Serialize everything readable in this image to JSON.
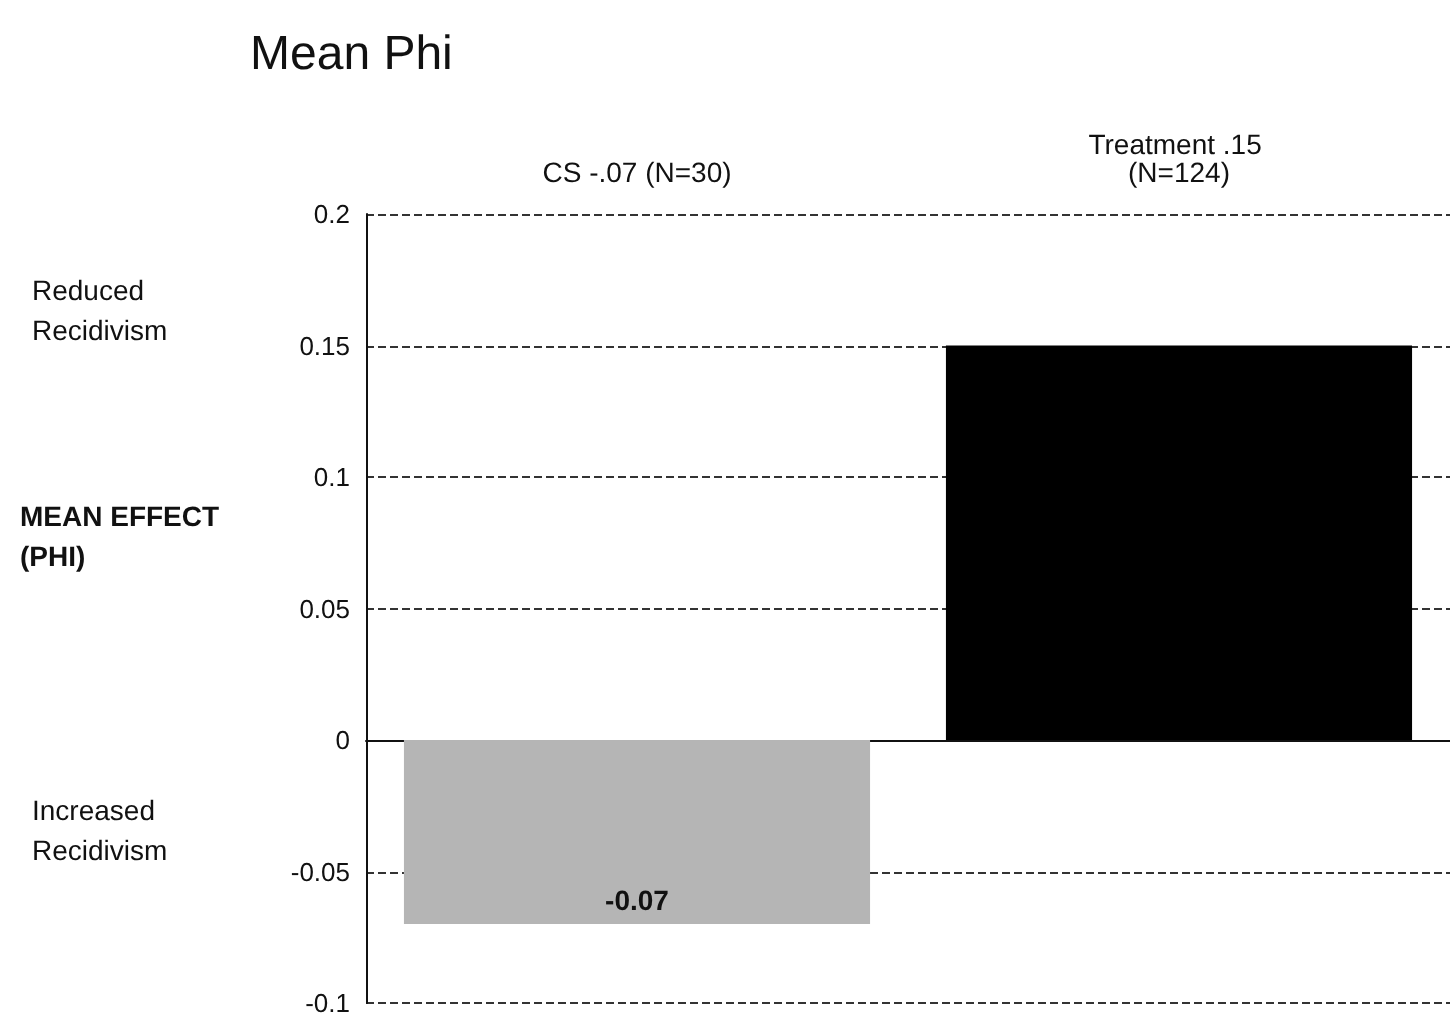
{
  "chart_data": {
    "type": "bar",
    "title": "Mean Phi",
    "ylabel": "MEAN EFFECT (PHI)",
    "annotations": [
      "Reduced Recidivism",
      "Increased Recidivism"
    ],
    "categories": [
      "CS -.07 (N=30)",
      "Treatment .15 (N=124)"
    ],
    "values": [
      -0.07,
      0.15
    ],
    "colors": [
      "#b5b5b5",
      "#000000"
    ],
    "value_labels": [
      "-0.07",
      null
    ],
    "ylim": [
      -0.1,
      0.2
    ],
    "yticks": [
      -0.1,
      -0.05,
      0,
      0.05,
      0.1,
      0.15,
      0.2
    ],
    "grid": "y"
  }
}
